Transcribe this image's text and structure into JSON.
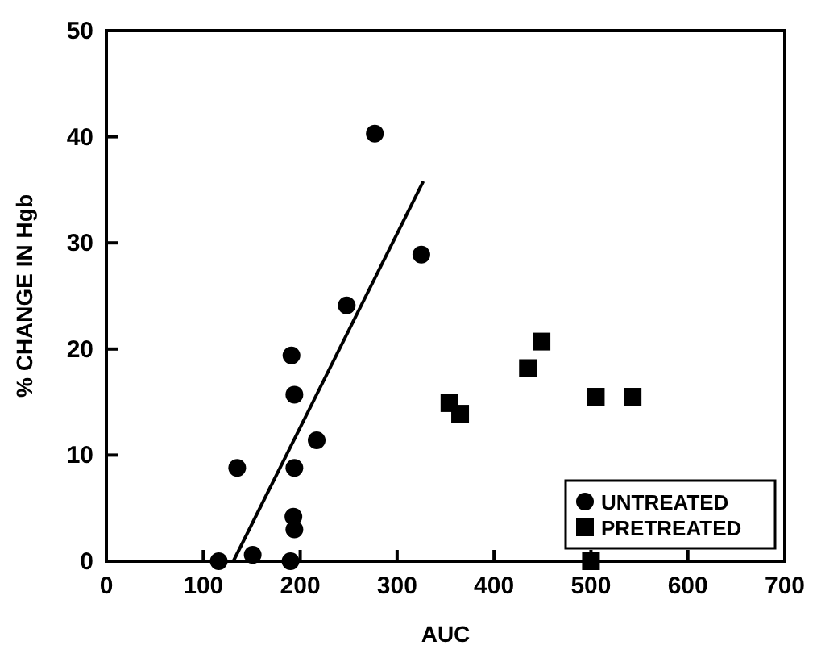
{
  "chart_data": {
    "type": "scatter",
    "xlabel": "AUC",
    "ylabel": "% CHANGE IN Hgb",
    "xlim": [
      0,
      700
    ],
    "xticks": [
      0,
      100,
      200,
      300,
      400,
      500,
      600,
      700
    ],
    "ylim": [
      0,
      50
    ],
    "yticks": [
      0,
      10,
      20,
      30,
      40,
      50
    ],
    "grid": false,
    "legend": "bottom right",
    "series": [
      {
        "name": "UNTREATED",
        "color": "#000000",
        "marker": "circle",
        "x": [
          116,
          151,
          190,
          194,
          193,
          194,
          135,
          217,
          194,
          191,
          248,
          277,
          325
        ],
        "values": [
          0,
          0.6,
          0,
          3.0,
          4.2,
          8.8,
          8.8,
          11.4,
          15.7,
          19.4,
          24.1,
          40.3,
          28.9
        ]
      },
      {
        "name": "PRETREATED",
        "color": "#000000",
        "marker": "square",
        "x": [
          354,
          365,
          435,
          449,
          505,
          543,
          500
        ],
        "values": [
          14.9,
          13.9,
          18.2,
          20.7,
          15.5,
          15.5,
          0
        ]
      },
      {
        "type": "line",
        "color": "#000000",
        "marker": "none",
        "line_style": "solid",
        "x": [
          131,
          327
        ],
        "values": [
          0,
          35.8
        ]
      }
    ]
  }
}
